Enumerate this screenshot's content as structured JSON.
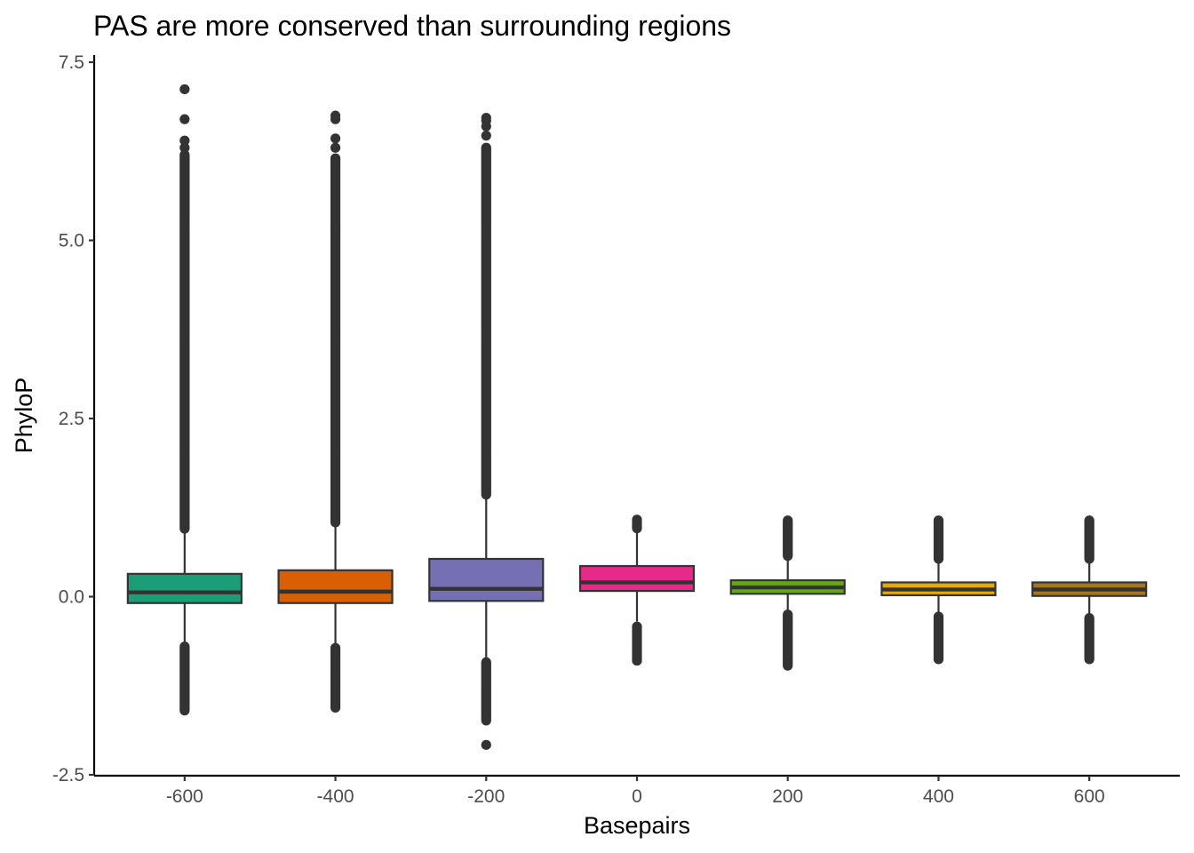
{
  "chart_data": {
    "type": "box",
    "title": "PAS are more conserved than surrounding regions",
    "xlabel": "Basepairs",
    "ylabel": "PhyloP",
    "x_ticks": [
      "-600",
      "-400",
      "-200",
      "0",
      "200",
      "400",
      "600"
    ],
    "y_ticks": [
      "-2.5",
      "0.0",
      "2.5",
      "5.0",
      "7.5"
    ],
    "ylim": [
      -2.5,
      7.5
    ],
    "x_range": [
      -720,
      720
    ],
    "grid": false,
    "legend": "none",
    "series": [
      {
        "x": -600,
        "color": "#1B9E77",
        "q1": -0.09,
        "median": 0.06,
        "q3": 0.32,
        "whisker_low": -0.65,
        "whisker_high": 0.92,
        "outliers_low_range": [
          -1.6,
          -0.7
        ],
        "outliers_high_range": [
          0.95,
          6.2
        ],
        "outliers_high_extra": [
          6.3,
          6.4,
          6.7,
          7.12
        ]
      },
      {
        "x": -400,
        "color": "#D95F02",
        "q1": -0.09,
        "median": 0.07,
        "q3": 0.37,
        "whisker_low": -0.68,
        "whisker_high": 1.0,
        "outliers_low_range": [
          -1.56,
          -0.72
        ],
        "outliers_high_range": [
          1.03,
          6.15
        ],
        "outliers_high_extra": [
          6.3,
          6.43,
          6.7,
          6.75
        ]
      },
      {
        "x": -200,
        "color": "#7570B3",
        "q1": -0.06,
        "median": 0.11,
        "q3": 0.53,
        "whisker_low": -0.88,
        "whisker_high": 1.4,
        "outliers_low_range": [
          -1.75,
          -0.92
        ],
        "outliers_low_extra": [
          -2.08
        ],
        "outliers_high_range": [
          1.43,
          6.3
        ],
        "outliers_high_extra": [
          6.47,
          6.6,
          6.68,
          6.72
        ]
      },
      {
        "x": 0,
        "color": "#E7298A",
        "q1": 0.08,
        "median": 0.2,
        "q3": 0.43,
        "whisker_low": -0.35,
        "whisker_high": 0.95,
        "outliers_low_range": [
          -0.9,
          -0.42
        ],
        "outliers_high_range": [
          0.96,
          1.08
        ]
      },
      {
        "x": 200,
        "color": "#66A61E",
        "q1": 0.04,
        "median": 0.13,
        "q3": 0.23,
        "whisker_low": -0.2,
        "whisker_high": 0.53,
        "outliers_low_range": [
          -0.97,
          -0.25
        ],
        "outliers_high_range": [
          0.56,
          1.07
        ]
      },
      {
        "x": 400,
        "color": "#E6AB02",
        "q1": 0.02,
        "median": 0.1,
        "q3": 0.2,
        "whisker_low": -0.22,
        "whisker_high": 0.5,
        "outliers_low_range": [
          -0.88,
          -0.28
        ],
        "outliers_high_range": [
          0.53,
          1.07
        ]
      },
      {
        "x": 600,
        "color": "#A6761D",
        "q1": 0.01,
        "median": 0.1,
        "q3": 0.2,
        "whisker_low": -0.24,
        "whisker_high": 0.5,
        "outliers_low_range": [
          -0.88,
          -0.3
        ],
        "outliers_high_range": [
          0.53,
          1.07
        ]
      }
    ]
  }
}
